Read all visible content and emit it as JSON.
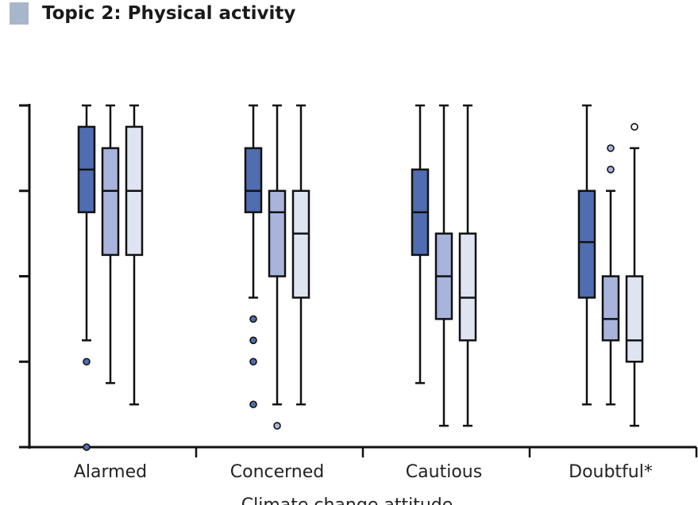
{
  "header": {
    "title": "Topic 2: Physical activity"
  },
  "chart_data": {
    "type": "boxplot",
    "title": "Topic 2: Physical activity",
    "xlabel": "Climate change attitude",
    "ylabel": "",
    "ylim": [
      1,
      9
    ],
    "y_ticks": [
      1,
      3,
      5,
      7,
      9
    ],
    "y_tick_labels_visible": false,
    "categories": [
      "Alarmed",
      "Concerned",
      "Cautious",
      "Doubtful*"
    ],
    "series": [
      {
        "name": "series-1",
        "color": "#4f6db0",
        "outlier_fill": "#4f6db0"
      },
      {
        "name": "series-2",
        "color": "#a8b4dc",
        "outlier_fill": "#a8b4dc"
      },
      {
        "name": "series-3",
        "color": "#dfe4f3",
        "outlier_fill": "#ffffff"
      }
    ],
    "boxes": [
      [
        {
          "whisker_low": 3.5,
          "q1": 6.5,
          "median": 7.5,
          "q3": 8.5,
          "whisker_high": 9,
          "outliers": [
            3,
            1
          ]
        },
        {
          "whisker_low": 2.5,
          "q1": 5.5,
          "median": 7,
          "q3": 8,
          "whisker_high": 9,
          "outliers": []
        },
        {
          "whisker_low": 2,
          "q1": 5.5,
          "median": 7,
          "q3": 8.5,
          "whisker_high": 9,
          "outliers": []
        }
      ],
      [
        {
          "whisker_low": 4.5,
          "q1": 6.5,
          "median": 7,
          "q3": 8,
          "whisker_high": 9,
          "outliers": [
            4,
            3.5,
            3,
            2
          ]
        },
        {
          "whisker_low": 2,
          "q1": 5,
          "median": 6.5,
          "q3": 7,
          "whisker_high": 9,
          "outliers": [
            1.5
          ]
        },
        {
          "whisker_low": 2,
          "q1": 4.5,
          "median": 6,
          "q3": 7,
          "whisker_high": 9,
          "outliers": []
        }
      ],
      [
        {
          "whisker_low": 2.5,
          "q1": 5.5,
          "median": 6.5,
          "q3": 7.5,
          "whisker_high": 9,
          "outliers": []
        },
        {
          "whisker_low": 1.5,
          "q1": 4,
          "median": 5,
          "q3": 6,
          "whisker_high": 9,
          "outliers": []
        },
        {
          "whisker_low": 1.5,
          "q1": 3.5,
          "median": 4.5,
          "q3": 6,
          "whisker_high": 9,
          "outliers": []
        }
      ],
      [
        {
          "whisker_low": 2,
          "q1": 4.5,
          "median": 5.8,
          "q3": 7,
          "whisker_high": 9,
          "outliers": []
        },
        {
          "whisker_low": 2,
          "q1": 3.5,
          "median": 4,
          "q3": 5,
          "whisker_high": 7,
          "outliers": [
            8,
            7.5
          ]
        },
        {
          "whisker_low": 1.5,
          "q1": 3,
          "median": 3.5,
          "q3": 5,
          "whisker_high": 8,
          "outliers": [
            8.5
          ]
        }
      ]
    ]
  }
}
